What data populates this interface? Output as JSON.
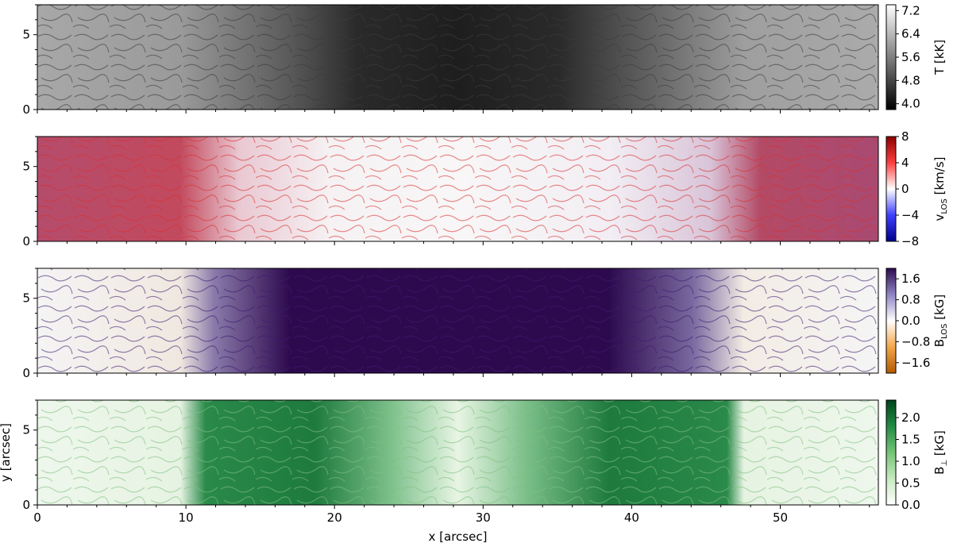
{
  "chart_data": {
    "type": "heatmap",
    "shared_x": {
      "label": "x [arcsec]",
      "lim": [
        0,
        56.6
      ],
      "ticks": [
        0,
        10,
        20,
        30,
        40,
        50
      ]
    },
    "shared_y": {
      "label": "y [arcsec]",
      "lim": [
        0,
        7.0
      ],
      "ticks": [
        0,
        5
      ]
    },
    "panels": [
      {
        "quantity": "temperature",
        "colorbar": {
          "label_main": "T [kK]",
          "label_sub": "",
          "label_tail": "",
          "lim": [
            3.8,
            7.4
          ],
          "ticks": [
            4.0,
            4.8,
            5.6,
            6.4,
            7.2
          ],
          "tick_labels": [
            "4.0",
            "4.8",
            "5.6",
            "6.4",
            "7.2"
          ],
          "colors": [
            "#000000",
            "#ffffff"
          ]
        }
      },
      {
        "quantity": "line-of-sight velocity",
        "colorbar": {
          "label_main": "v",
          "label_sub": "LOS",
          "label_tail": " [km/s]",
          "lim": [
            -8,
            8
          ],
          "ticks": [
            -8,
            -4,
            0,
            4,
            8
          ],
          "tick_labels": [
            "−8",
            "−4",
            "0",
            "4",
            "8"
          ],
          "colors": [
            "#00008c",
            "#3f3fff",
            "#ffffff",
            "#ff3f3f",
            "#8c0000"
          ]
        }
      },
      {
        "quantity": "line-of-sight magnetic field",
        "colorbar": {
          "label_main": "B",
          "label_sub": "LOS",
          "label_tail": " [kG]",
          "lim": [
            -2.0,
            2.0
          ],
          "ticks": [
            -1.6,
            -0.8,
            0.0,
            0.8,
            1.6
          ],
          "tick_labels": [
            "−1.6",
            "−0.8",
            "0.0",
            "0.8",
            "1.6"
          ],
          "colors": [
            "#b35a00",
            "#f3a64a",
            "#ffffff",
            "#8f84c4",
            "#2d0a4e"
          ]
        }
      },
      {
        "quantity": "transverse magnetic field",
        "colorbar": {
          "label_main": "B",
          "label_sub": "⊥",
          "label_tail": " [kG]",
          "lim": [
            0.0,
            2.4
          ],
          "ticks": [
            0.0,
            0.5,
            1.0,
            1.5,
            2.0
          ],
          "tick_labels": [
            "0.0",
            "0.5",
            "1.0",
            "1.5",
            "2.0"
          ],
          "colors": [
            "#ffffff",
            "#c7e9c0",
            "#74c476",
            "#238b45",
            "#00441b"
          ]
        }
      }
    ]
  }
}
